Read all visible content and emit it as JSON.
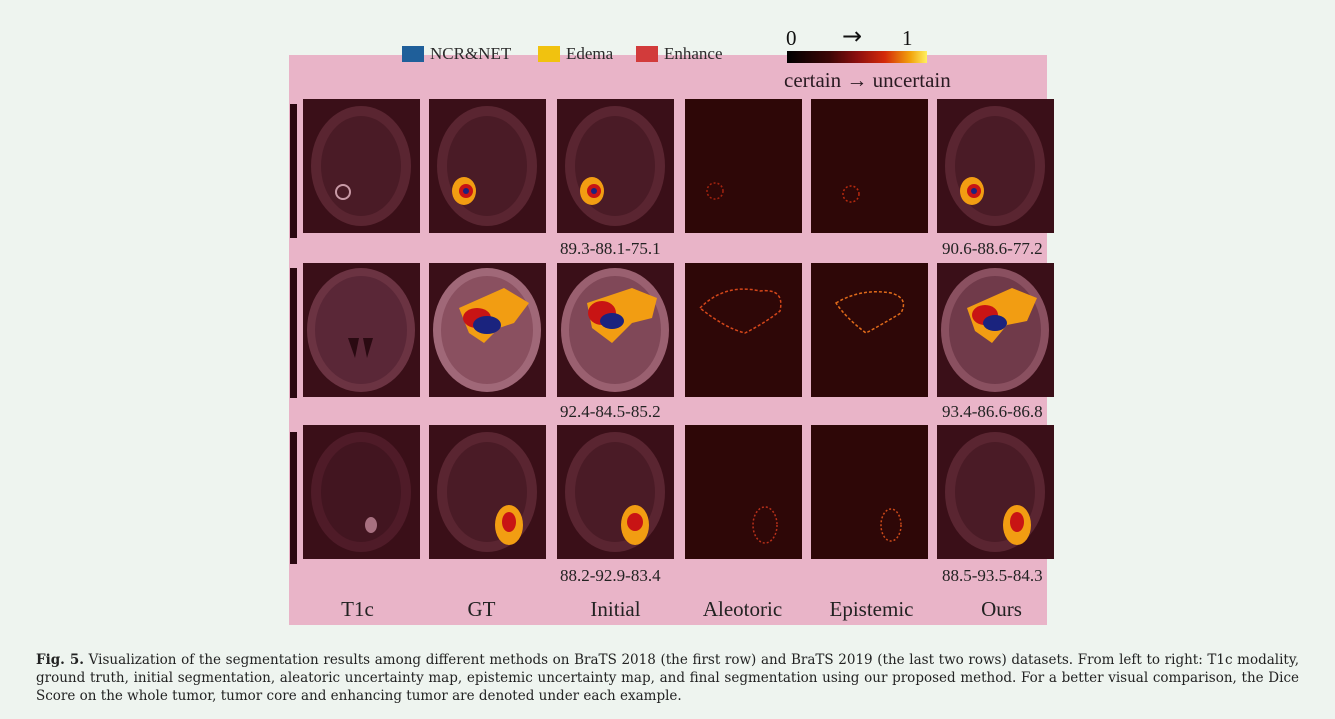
{
  "legend": {
    "items": [
      {
        "label": "NCR&NET",
        "color": "#1f5f9a",
        "inner_color": "#12207a"
      },
      {
        "label": "Edema",
        "color": "#f1c20f",
        "inner_color": "#f19a12"
      },
      {
        "label": "Enhance",
        "color": "#d23b3b",
        "inner_color": "#c01212"
      }
    ]
  },
  "uncertainty_scale": {
    "min_label": "0",
    "max_label": "1",
    "arrow": "→",
    "caption": "certain → uncertain"
  },
  "columns": [
    "T1c",
    "GT",
    "Initial",
    "Aleotoric",
    "Epistemic",
    "Ours"
  ],
  "scores": {
    "row1": {
      "initial": "89.3-88.1-75.1",
      "ours": "90.6-88.6-77.2"
    },
    "row2": {
      "initial": "92.4-84.5-85.2",
      "ours": "93.4-86.6-86.8"
    },
    "row3": {
      "initial": "88.2-92.9-83.4",
      "ours": "88.5-93.5-84.3"
    }
  },
  "caption": {
    "label": "Fig. 5.",
    "text": " Visualization of the segmentation results among different methods on BraTS 2018 (the first row) and BraTS 2019 (the last two rows) datasets. From left to right: T1c modality, ground truth, initial segmentation, aleatoric uncertainty map, epistemic uncertainty map, and final segmentation using our proposed method. For a better visual comparison, the Dice Score on the whole tumor, tumor core and enhancing tumor are denoted under each example."
  }
}
